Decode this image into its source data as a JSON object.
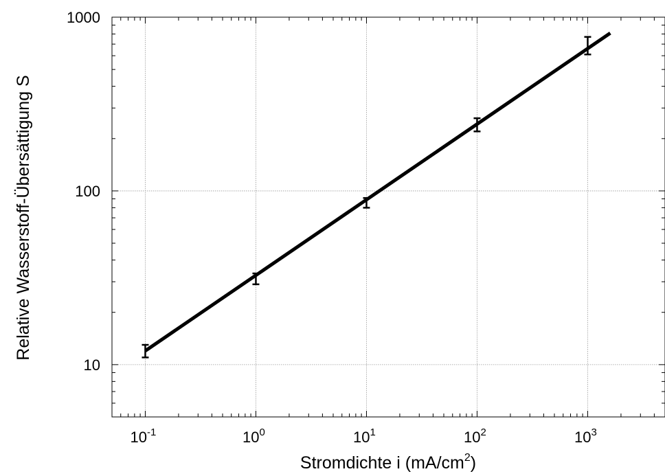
{
  "chart_data": {
    "type": "line",
    "title": "",
    "xlabel": "Stromdichte i (mA/cm²)",
    "xlabel_main": "Stromdichte i (mA/cm",
    "xlabel_sup": "2",
    "xlabel_tail": ")",
    "ylabel": "Relative Wasserstoff-Übersättigung S",
    "x_scale": "log",
    "y_scale": "log",
    "xlim": [
      0.05,
      5000
    ],
    "ylim": [
      5,
      1000
    ],
    "grid": true,
    "legend": "none",
    "x_ticks": [
      {
        "value": 0.1,
        "base": "10",
        "exp": "-1"
      },
      {
        "value": 1,
        "base": "10",
        "exp": "0"
      },
      {
        "value": 10,
        "base": "10",
        "exp": "1"
      },
      {
        "value": 100,
        "base": "10",
        "exp": "2"
      },
      {
        "value": 1000,
        "base": "10",
        "exp": "3"
      }
    ],
    "y_ticks": [
      {
        "value": 10,
        "label": "10"
      },
      {
        "value": 100,
        "label": "100"
      },
      {
        "value": 1000,
        "label": "1000"
      }
    ],
    "series": [
      {
        "kind": "fit-line",
        "x": [
          0.1,
          1600
        ],
        "y": [
          12,
          810
        ]
      },
      {
        "kind": "error-bars",
        "x": [
          0.1,
          1,
          10,
          100,
          1000
        ],
        "y": [
          12,
          31,
          85,
          240,
          680
        ],
        "y_low": [
          11,
          29,
          80,
          220,
          610
        ],
        "y_high": [
          13,
          33.5,
          91,
          262,
          770
        ]
      }
    ],
    "colors": {
      "line": "#000000",
      "grid": "#999999",
      "axis": "#000000"
    }
  }
}
